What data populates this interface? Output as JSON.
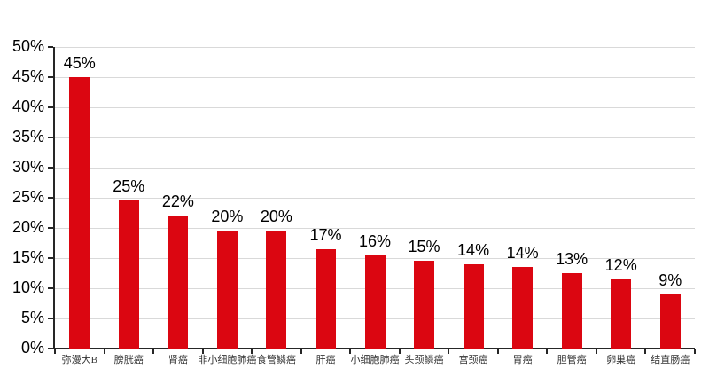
{
  "chart_data": {
    "type": "bar",
    "title": "",
    "xlabel": "",
    "ylabel": "",
    "categories": [
      "弥漫大B",
      "膀胱癌",
      "肾癌",
      "非小细胞肺癌",
      "食管鳞癌",
      "肝癌",
      "小细胞肺癌",
      "头颈鳞癌",
      "宫颈癌",
      "胃癌",
      "胆管癌",
      "卵巢癌",
      "结直肠癌"
    ],
    "values": [
      45,
      25,
      22,
      20,
      20,
      17,
      16,
      15,
      14,
      14,
      13,
      12,
      9
    ],
    "bar_heights_pct": [
      45,
      24.5,
      22,
      19.5,
      19.5,
      16.5,
      15.5,
      14.5,
      14,
      13.5,
      12.5,
      11.5,
      9
    ],
    "data_labels": [
      "45%",
      "25%",
      "22%",
      "20%",
      "20%",
      "17%",
      "16%",
      "15%",
      "14%",
      "14%",
      "13%",
      "12%",
      "9%"
    ],
    "ylim": [
      0,
      50
    ],
    "y_tick_step": 5,
    "y_ticks": [
      "0%",
      "5%",
      "10%",
      "15%",
      "20%",
      "25%",
      "30%",
      "35%",
      "40%",
      "45%",
      "50%"
    ],
    "grid": "horizontal",
    "legend": "none",
    "colors": {
      "bar": "#DB0611",
      "gridline": "#D9D9D9",
      "axis": "#262626",
      "value_label": "#000000",
      "category_label": "#333333",
      "background": "#FFFFFF"
    }
  }
}
